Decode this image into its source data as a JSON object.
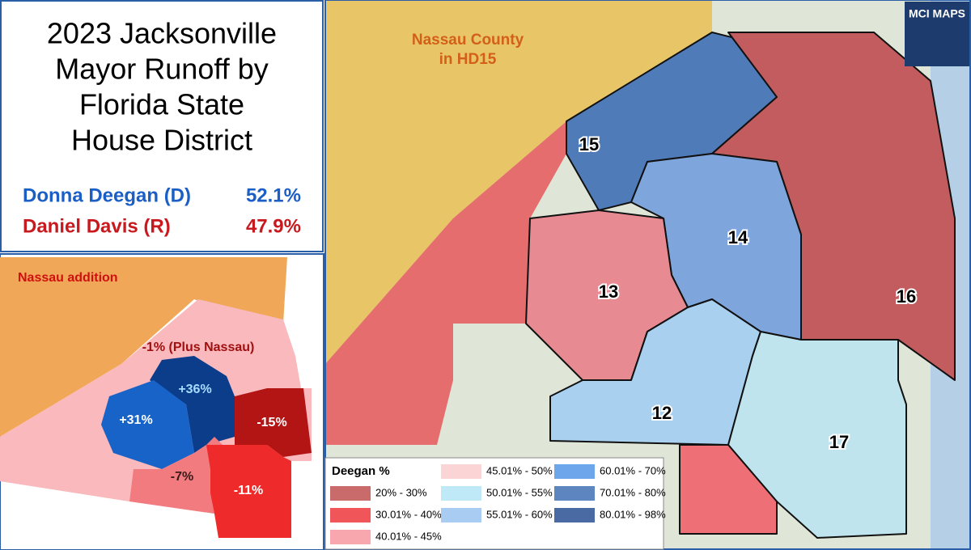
{
  "title_lines": [
    "2023 Jacksonville",
    "Mayor Runoff by",
    "Florida State",
    "House District"
  ],
  "results": [
    {
      "name": "Donna Deegan (D)",
      "value": "52.1%",
      "color": "#1b5fc6"
    },
    {
      "name": "Daniel Davis (R)",
      "value": "47.9%",
      "color": "#c8191e"
    }
  ],
  "inset": {
    "heading": "Nassau addition",
    "districts": [
      {
        "label": "-1% (Plus Nassau)",
        "color": "#f9b9bd"
      },
      {
        "label": "+36%",
        "color": "#0c3d8b"
      },
      {
        "label": "+31%",
        "color": "#1763c8"
      },
      {
        "label": "-15%",
        "color": "#b31515"
      },
      {
        "label": "-7%",
        "color": "#f27b7f"
      },
      {
        "label": "-11%",
        "color": "#ef2a2a"
      }
    ]
  },
  "map": {
    "annotation_lines": [
      "Nassau County",
      "in HD15"
    ],
    "districts": [
      "15",
      "14",
      "13",
      "16",
      "12",
      "17"
    ],
    "logo": "MCI MAPS"
  },
  "legend": {
    "title": "Deegan %",
    "items": [
      {
        "label": "20% - 30%",
        "color": "#c96b6b"
      },
      {
        "label": "30.01% - 40%",
        "color": "#f0555a"
      },
      {
        "label": "40.01% - 45%",
        "color": "#f7a7ad"
      },
      {
        "label": "45.01% - 50%",
        "color": "#fbd4d6"
      },
      {
        "label": "50.01% - 55%",
        "color": "#bfe9f7"
      },
      {
        "label": "55.01% - 60%",
        "color": "#a9cdf2"
      },
      {
        "label": "60.01% - 70%",
        "color": "#6ea6ec"
      },
      {
        "label": "70.01% - 80%",
        "color": "#5d86c0"
      },
      {
        "label": "80.01% - 98%",
        "color": "#4a6aa3"
      }
    ]
  }
}
